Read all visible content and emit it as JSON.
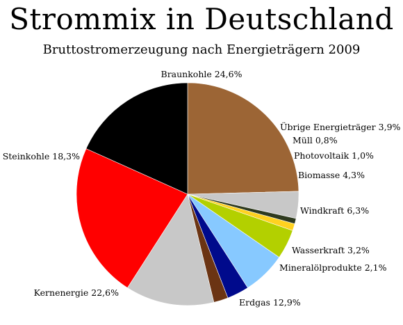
{
  "chart_data": {
    "type": "pie",
    "title": "Strommix in Deutschland",
    "subtitle": "Bruttostromerzeugung nach Energieträgern 2009",
    "slices": [
      {
        "label": "Braunkohle",
        "value": 24.6,
        "value_label": "24,6%",
        "color": "#9c6535"
      },
      {
        "label": "Übrige Energieträger",
        "value": 3.9,
        "value_label": "3,9%",
        "color": "#c8c8c8"
      },
      {
        "label": "Müll",
        "value": 0.8,
        "value_label": "0,8%",
        "color": "#2e3a1f"
      },
      {
        "label": "Photovoltaik",
        "value": 1.0,
        "value_label": "1,0%",
        "color": "#ffd21f"
      },
      {
        "label": "Biomasse",
        "value": 4.3,
        "value_label": "4,3%",
        "color": "#b3d000"
      },
      {
        "label": "Windkraft",
        "value": 6.3,
        "value_label": "6,3%",
        "color": "#87c9ff"
      },
      {
        "label": "Wasserkraft",
        "value": 3.2,
        "value_label": "3,2%",
        "color": "#000a8c"
      },
      {
        "label": "Mineralölprodukte",
        "value": 2.1,
        "value_label": "2,1%",
        "color": "#6b3413"
      },
      {
        "label": "Erdgas",
        "value": 12.9,
        "value_label": "12,9%",
        "color": "#c8c8c8"
      },
      {
        "label": "Kernenergie",
        "value": 22.6,
        "value_label": "22,6%",
        "color": "#ff0000"
      },
      {
        "label": "Steinkohle",
        "value": 18.3,
        "value_label": "18,3%",
        "color": "#000000"
      }
    ]
  }
}
